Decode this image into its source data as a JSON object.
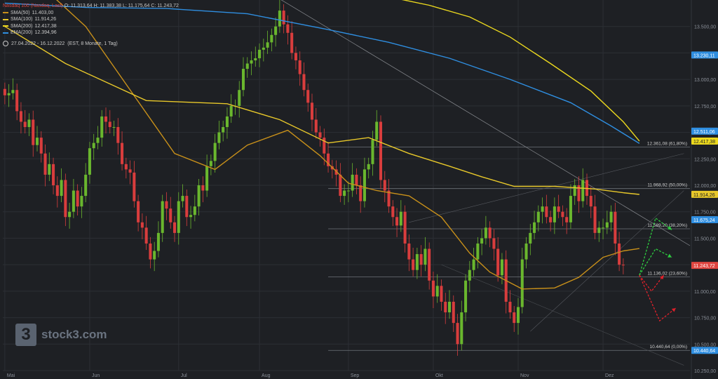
{
  "header": {
    "title": "Nasdaq 100 (Nasdaq, Last)",
    "ohlc": "O: 11.313,64  H: 11.383,38  L: 11.175,64  C: 11.243,72",
    "date_range": "27.04.2022 - 16.12.2022",
    "period": "(EST, 8 Monate, 1 Tag)"
  },
  "legend": [
    {
      "label": "SMA(50)",
      "value": "11.403,00",
      "color": "#c8901a"
    },
    {
      "label": "SMA(100)",
      "value": "11.914,26",
      "color": "#e8c82a"
    },
    {
      "label": "SMA(200)",
      "value": "12.417,38",
      "color": "#ecd91e"
    },
    {
      "label": "EMA(200)",
      "value": "12.394,96",
      "color": "#2f8ee0"
    }
  ],
  "logo": {
    "text": "stock3.com",
    "mark": "3"
  },
  "chart_data": {
    "type": "candlestick",
    "ylim": [
      10250,
      13750
    ],
    "y_ticks": [
      {
        "v": 10250,
        "label": "10.250,00"
      },
      {
        "v": 10500,
        "label": "10.500,00"
      },
      {
        "v": 10750,
        "label": "10.750,00"
      },
      {
        "v": 11000,
        "label": "11.000,00"
      },
      {
        "v": 11250,
        "label": "11.250,00"
      },
      {
        "v": 11500,
        "label": "11.500,00"
      },
      {
        "v": 11750,
        "label": "11.750,00"
      },
      {
        "v": 12000,
        "label": "12.000,00"
      },
      {
        "v": 12250,
        "label": "12.250,00"
      },
      {
        "v": 12500,
        "label": "12.500,00"
      },
      {
        "v": 12750,
        "label": "12.750,00"
      },
      {
        "v": 13000,
        "label": "13.000,00"
      },
      {
        "v": 13250,
        "label": "13.250,00"
      },
      {
        "v": 13500,
        "label": "13.500,00"
      }
    ],
    "x_ticks": [
      {
        "bar": 0,
        "label": "Mai"
      },
      {
        "bar": 21,
        "label": "Jun"
      },
      {
        "bar": 43,
        "label": "Jul"
      },
      {
        "bar": 63,
        "label": "Aug"
      },
      {
        "bar": 85,
        "label": "Sep"
      },
      {
        "bar": 106,
        "label": "Okt"
      },
      {
        "bar": 127,
        "label": "Nov"
      },
      {
        "bar": 148,
        "label": "Dez"
      }
    ],
    "closes": [
      12850,
      12870,
      12900,
      12700,
      12600,
      12550,
      12620,
      12380,
      12450,
      12300,
      12100,
      12200,
      12000,
      11900,
      12050,
      11700,
      11750,
      11950,
      11800,
      11900,
      12100,
      12350,
      12400,
      12450,
      12650,
      12600,
      12550,
      12550,
      12400,
      12200,
      12150,
      12120,
      11850,
      11650,
      11600,
      11450,
      11300,
      11380,
      11550,
      11850,
      11780,
      11650,
      11550,
      11850,
      11900,
      11700,
      11720,
      11800,
      12000,
      11950,
      12180,
      12230,
      12400,
      12500,
      12550,
      12650,
      12750,
      12750,
      12900,
      13100,
      13150,
      13180,
      13200,
      13280,
      13300,
      13350,
      13420,
      13500,
      13650,
      13520,
      13440,
      13250,
      13180,
      13050,
      12900,
      12780,
      12620,
      12500,
      12450,
      12300,
      12180,
      12150,
      12100,
      11900,
      11950,
      11950,
      12100,
      12000,
      11850,
      12150,
      12200,
      12430,
      12600,
      12050,
      11950,
      11800,
      11700,
      11620,
      11750,
      11450,
      11300,
      11200,
      11350,
      11250,
      11400,
      11100,
      10950,
      11050,
      10900,
      10800,
      10900,
      10700,
      10500,
      10800,
      11100,
      11200,
      11300,
      11450,
      11500,
      11600,
      11500,
      11400,
      11150,
      11300,
      10900,
      10800,
      10700,
      10850,
      11300,
      11450,
      11550,
      11650,
      11750,
      11800,
      11700,
      11650,
      11800,
      11750,
      11700,
      11650,
      11900,
      12000,
      11850,
      12050,
      11900,
      11800,
      11550,
      11600,
      11600,
      11650,
      11750,
      11450,
      11250,
      11244
    ],
    "bars_total": 170,
    "moving_averages": [
      {
        "name": "SMA(50)",
        "color": "#c8901a",
        "points": [
          [
            0,
            14200
          ],
          [
            20,
            13500
          ],
          [
            42,
            12300
          ],
          [
            52,
            12150
          ],
          [
            60,
            12380
          ],
          [
            70,
            12520
          ],
          [
            78,
            12280
          ],
          [
            85,
            12020
          ],
          [
            92,
            11950
          ],
          [
            100,
            11900
          ],
          [
            108,
            11700
          ],
          [
            115,
            11360
          ],
          [
            120,
            11180
          ],
          [
            128,
            11020
          ],
          [
            136,
            11030
          ],
          [
            142,
            11130
          ],
          [
            148,
            11320
          ],
          [
            153,
            11380
          ],
          [
            157,
            11403
          ]
        ]
      },
      {
        "name": "SMA(100)",
        "color": "#e8c82a",
        "points": [
          [
            0,
            13500
          ],
          [
            15,
            13150
          ],
          [
            35,
            12800
          ],
          [
            55,
            12770
          ],
          [
            68,
            12620
          ],
          [
            80,
            12400
          ],
          [
            90,
            12450
          ],
          [
            100,
            12300
          ],
          [
            110,
            12180
          ],
          [
            118,
            12080
          ],
          [
            126,
            11990
          ],
          [
            136,
            11990
          ],
          [
            146,
            11965
          ],
          [
            153,
            11930
          ],
          [
            157,
            11914
          ]
        ]
      },
      {
        "name": "SMA(200)",
        "color": "#ecd91e",
        "points": [
          [
            88,
            13830
          ],
          [
            95,
            13780
          ],
          [
            105,
            13700
          ],
          [
            115,
            13590
          ],
          [
            125,
            13400
          ],
          [
            135,
            13150
          ],
          [
            145,
            12890
          ],
          [
            153,
            12600
          ],
          [
            157,
            12417
          ]
        ]
      },
      {
        "name": "EMA(200)",
        "color": "#2f8ee0",
        "points": [
          [
            0,
            13720
          ],
          [
            20,
            13680
          ],
          [
            40,
            13670
          ],
          [
            60,
            13620
          ],
          [
            80,
            13470
          ],
          [
            95,
            13350
          ],
          [
            110,
            13200
          ],
          [
            125,
            13000
          ],
          [
            140,
            12780
          ],
          [
            150,
            12560
          ],
          [
            157,
            12395
          ]
        ]
      }
    ],
    "fib_levels": [
      {
        "value": 12361.08,
        "label": "12.361,08 (61,80%)"
      },
      {
        "value": 11968.92,
        "label": "11.968,92 (50,00%)"
      },
      {
        "value": 11589.2,
        "label": "11.589,20 (38,20%)"
      },
      {
        "value": 11136.02,
        "label": "11.136,02 (23,60%)"
      },
      {
        "value": 10440.64,
        "label": "10.440,64 (0,00%)"
      }
    ],
    "price_tags": [
      {
        "value": 13230.11,
        "label": "13.230,11",
        "color": "#2f8ee0",
        "text_color": "#ffffff"
      },
      {
        "value": 12511.06,
        "label": "12.511,06",
        "color": "#2f8ee0",
        "text_color": "#ffffff"
      },
      {
        "value": 12417.38,
        "label": "12.417,38",
        "color": "#ecd91e",
        "text_color": "#1e2024"
      },
      {
        "value": 11914.26,
        "label": "11.914,26",
        "color": "#e8c82a",
        "text_color": "#1e2024"
      },
      {
        "value": 11675.24,
        "label": "11.675,24",
        "color": "#2f8ee0",
        "text_color": "#ffffff"
      },
      {
        "value": 11243.72,
        "label": "11.243,72",
        "color": "#e0453f",
        "text_color": "#ffffff"
      },
      {
        "value": 10440.64,
        "label": "10.440,64",
        "color": "#2f8ee0",
        "text_color": "#ffffff"
      }
    ],
    "scenarios": [
      {
        "color": "#2ecc40",
        "points": [
          [
            157,
            11150
          ],
          [
            161,
            11690
          ],
          [
            165,
            11580
          ]
        ]
      },
      {
        "color": "#2ecc40",
        "points": [
          [
            157,
            11150
          ],
          [
            161,
            11400
          ],
          [
            165,
            11320
          ]
        ]
      },
      {
        "color": "#e0202a",
        "points": [
          [
            157,
            11150
          ],
          [
            160,
            11000
          ],
          [
            163,
            11150
          ]
        ]
      },
      {
        "color": "#e0202a",
        "points": [
          [
            157,
            11150
          ],
          [
            162,
            10720
          ],
          [
            166,
            10840
          ]
        ]
      }
    ],
    "colors": {
      "up": "#6ab72e",
      "down": "#d93d3d",
      "grid": "#2c2f35",
      "axis_text": "#8a8f98"
    }
  }
}
